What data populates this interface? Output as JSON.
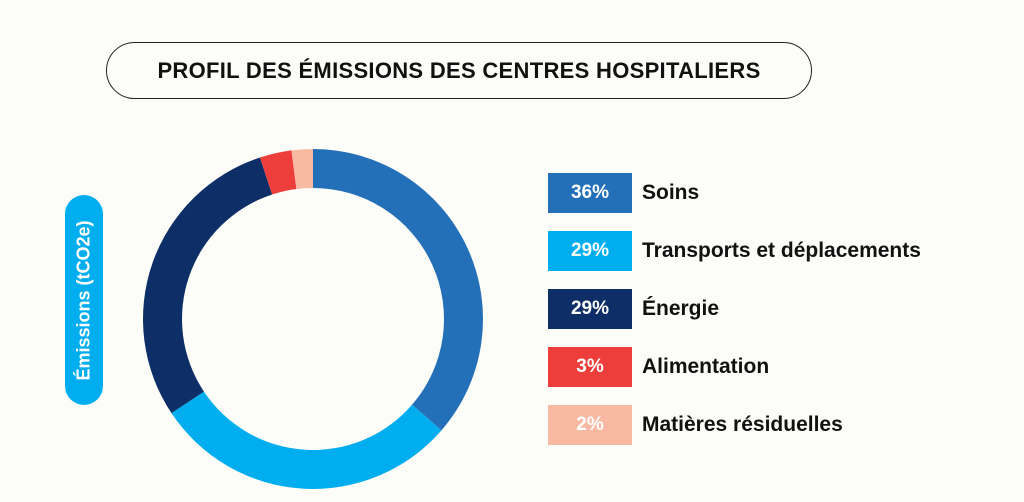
{
  "colors": {
    "soins": "#2470b8",
    "transports": "#00aeef",
    "energie": "#0d2e66",
    "alimentation": "#ee3e3b",
    "matieres": "#f8b9a3",
    "ylabel_pill": "#00aeef"
  },
  "chart_data": {
    "type": "pie",
    "title": "PROFIL DES ÉMISSIONS DES CENTRES HOSPITALIERS",
    "ylabel": "Émissions (tCO2e)",
    "donut": true,
    "legend_position": "right",
    "categories": [
      "Soins",
      "Transports et déplacements",
      "Énergie",
      "Alimentation",
      "Matières résiduelles"
    ],
    "values": [
      36,
      29,
      29,
      3,
      2
    ],
    "value_labels": [
      "36%",
      "29%",
      "29%",
      "3%",
      "2%"
    ],
    "colors": [
      "#2470b8",
      "#00aeef",
      "#0d2e66",
      "#ee3e3b",
      "#f8b9a3"
    ]
  }
}
